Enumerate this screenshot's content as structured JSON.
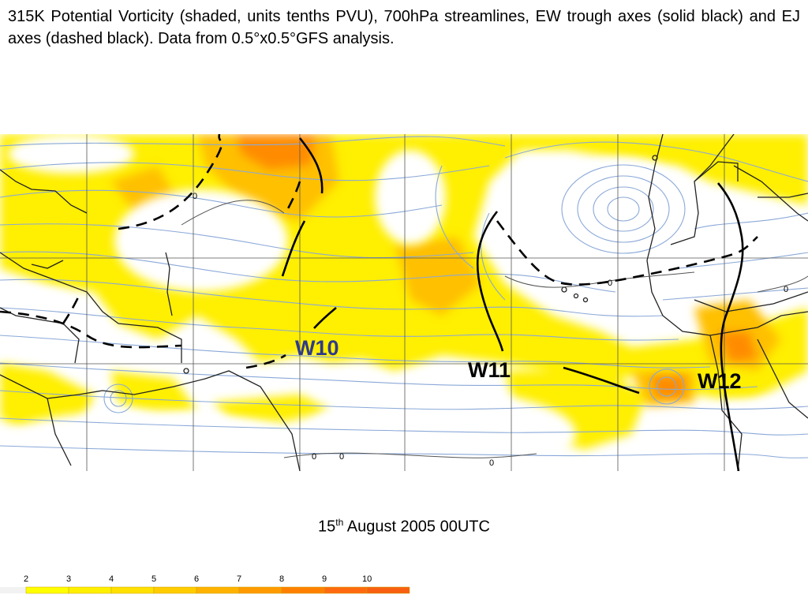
{
  "caption": "315K Potential Vorticity (shaded, units tenths PVU), 700hPa streamlines, EW trough axes (solid black) and EJ axes (dashed black). Data from 0.5°x0.5°GFS analysis.",
  "date": {
    "day": "15",
    "suffix": "th",
    "rest": "August 2005 00UTC"
  },
  "wave_labels": {
    "w10": {
      "text": "W10",
      "color": "#2e3a8c"
    },
    "w11": {
      "text": "W11",
      "color": "#000000"
    },
    "w12": {
      "text": "W12",
      "color": "#000000"
    }
  },
  "contour_labels": [
    "0",
    "0",
    "0",
    "0",
    "0",
    "0"
  ],
  "colorbar": {
    "ticks": [
      "2",
      "3",
      "4",
      "5",
      "6",
      "7",
      "8",
      "9",
      "10"
    ],
    "colors": [
      "#f2f2f2",
      "#ffff00",
      "#fff000",
      "#ffe000",
      "#ffcc00",
      "#ffb300",
      "#ff9a00",
      "#ff8000",
      "#ff6a10",
      "#f86010"
    ]
  },
  "colors": {
    "streamline": "#8aa8d8",
    "pv_low": "#ffef00",
    "pv_mid": "#ffc000",
    "pv_high": "#ff8c00",
    "coast": "#222222",
    "axes": "#000000"
  }
}
